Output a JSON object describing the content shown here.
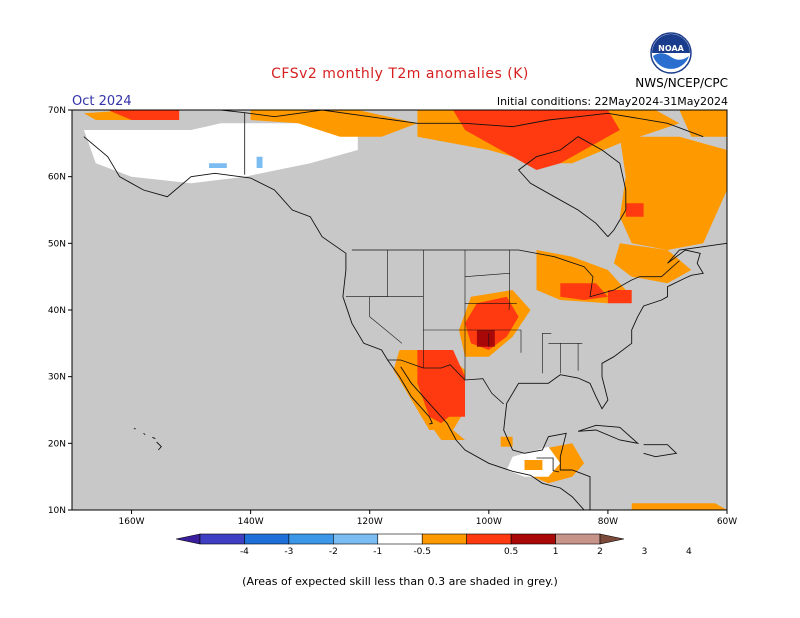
{
  "header": {
    "title": "CFSv2 monthly T2m anomalies (K)",
    "month": "Oct 2024",
    "initial_conditions": "Initial conditions: 22May2024-31May2024",
    "agency": "NWS/NCEP/CPC",
    "logo_text": "NOAA"
  },
  "map": {
    "lat_labels": [
      "70N",
      "60N",
      "50N",
      "40N",
      "30N",
      "20N",
      "10N"
    ],
    "lon_labels": [
      "160W",
      "140W",
      "120W",
      "100W",
      "80W",
      "60W"
    ],
    "background_color": "#c8c8c8"
  },
  "colorbar": {
    "labels": [
      "-4",
      "-3",
      "-2",
      "-1",
      "-0.5",
      "0.5",
      "1",
      "2",
      "3",
      "4"
    ],
    "colors": [
      "#3a1e9c",
      "#3f3fc4",
      "#1f6fd8",
      "#3d97e8",
      "#7bbcf2",
      "#ffffff",
      "#ff9900",
      "#ff3a10",
      "#a80808",
      "#c7948a",
      "#7b4a3a"
    ]
  },
  "footnote": "(Areas of expected skill less than 0.3 are shaded in grey.)"
}
